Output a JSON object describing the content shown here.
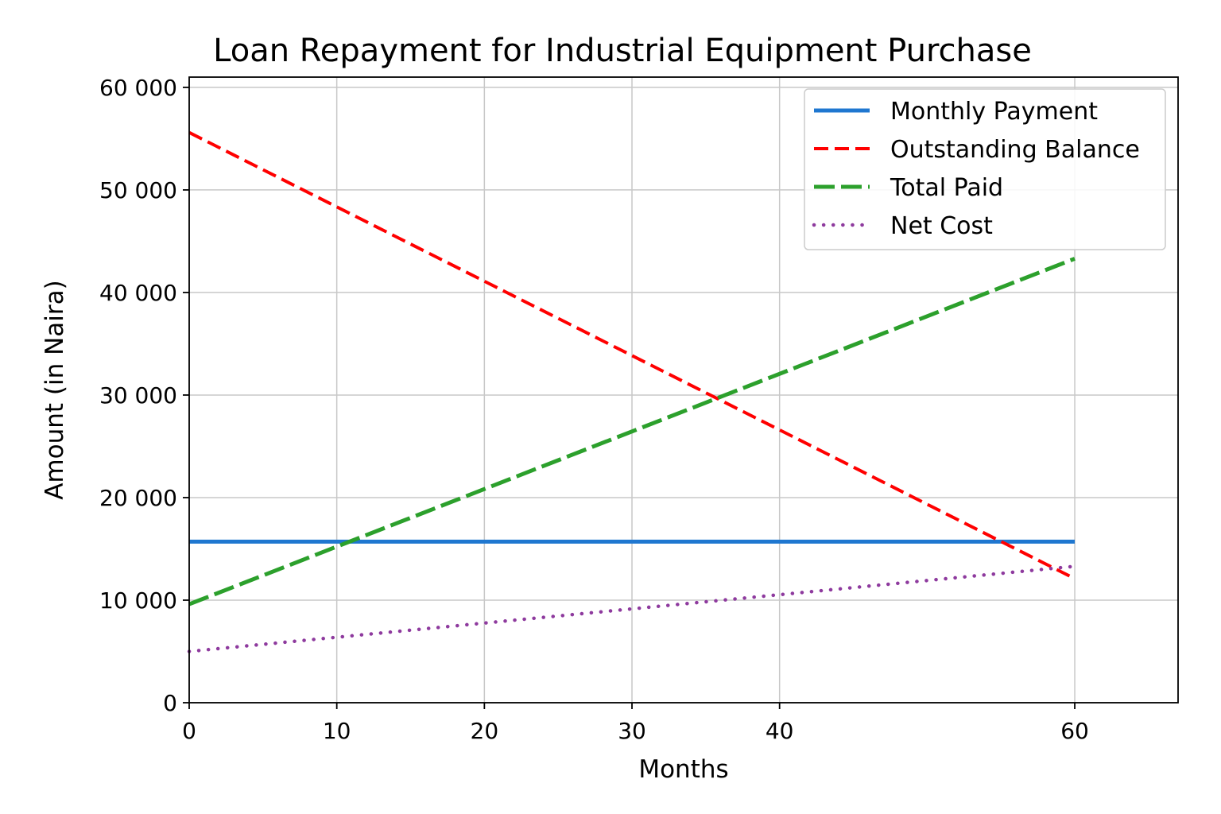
{
  "chart_data": {
    "type": "line",
    "title": "Loan Repayment for Industrial Equipment Purchase",
    "xlabel": "Months",
    "ylabel": "Amount (in Naira)",
    "xlim": [
      0,
      67
    ],
    "ylim": [
      0,
      61000
    ],
    "x_ticks": [
      0,
      10,
      20,
      30,
      40,
      60
    ],
    "x_tick_labels": [
      "0",
      "10",
      "20",
      "30",
      "40",
      "60"
    ],
    "y_ticks": [
      0,
      10000,
      20000,
      30000,
      40000,
      50000,
      60000
    ],
    "y_tick_labels": [
      "0",
      "10 000",
      "20 000",
      "30 000",
      "40 000",
      "50 000",
      "60 000"
    ],
    "grid": true,
    "legend_position": "top-right",
    "x": [
      0,
      60
    ],
    "series": [
      {
        "name": "Monthly Payment",
        "color": "#1f77d0",
        "style": "solid",
        "values": [
          15700,
          15700
        ]
      },
      {
        "name": "Outstanding Balance",
        "color": "#ff0000",
        "style": "dashed",
        "values": [
          55600,
          12100
        ]
      },
      {
        "name": "Total Paid",
        "color": "#2ca02c",
        "style": "longdash",
        "values": [
          9600,
          43300
        ]
      },
      {
        "name": "Net Cost",
        "color": "#8e3a9e",
        "style": "dotted",
        "values": [
          5000,
          13300
        ]
      }
    ]
  }
}
